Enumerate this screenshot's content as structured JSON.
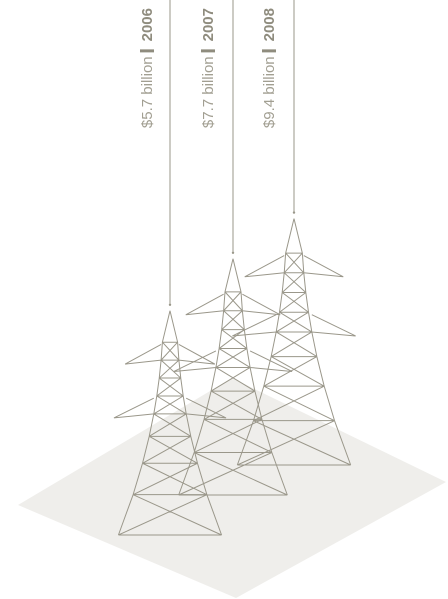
{
  "chart_data": {
    "type": "towers",
    "categories": [
      "2006",
      "2007",
      "2008"
    ],
    "values": [
      5.7,
      7.7,
      9.4
    ],
    "value_labels": [
      "$5.7 billion",
      "$7.7 billion",
      "$9.4 billion"
    ],
    "color": "#9a978a"
  }
}
